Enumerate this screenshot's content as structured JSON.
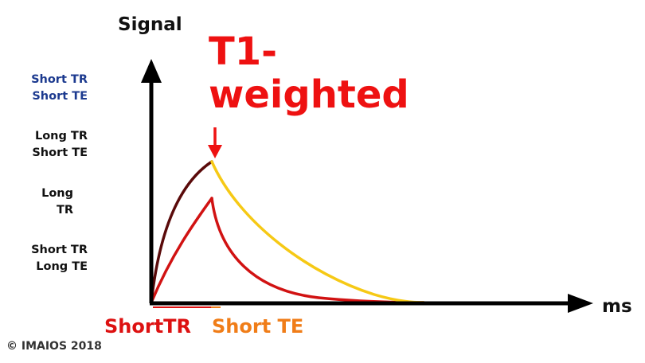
{
  "y_axis_label": "Signal",
  "x_axis_label": "ms",
  "title": "T1-\nweighted",
  "side_labels": [
    "Short TR\nShort TE",
    "Long TR\nShort TE",
    "Long\nTR",
    "Short TR\nLong TE"
  ],
  "bottom_labels": {
    "short_tr": "ShortTR",
    "short_te": "Short TE"
  },
  "copyright": "© IMAIOS 2018",
  "colors": {
    "axis": "#000000",
    "recovery_curve_upper": "#5a0a0a",
    "decay_curve_upper": "#f6c915",
    "lower_curve": "#d11212",
    "title_and_arrow": "#ee1111",
    "short_tr_underline": "#dd1111",
    "short_te_underline": "#f07d18",
    "side_label_highlight": "#1c3a8f"
  }
}
